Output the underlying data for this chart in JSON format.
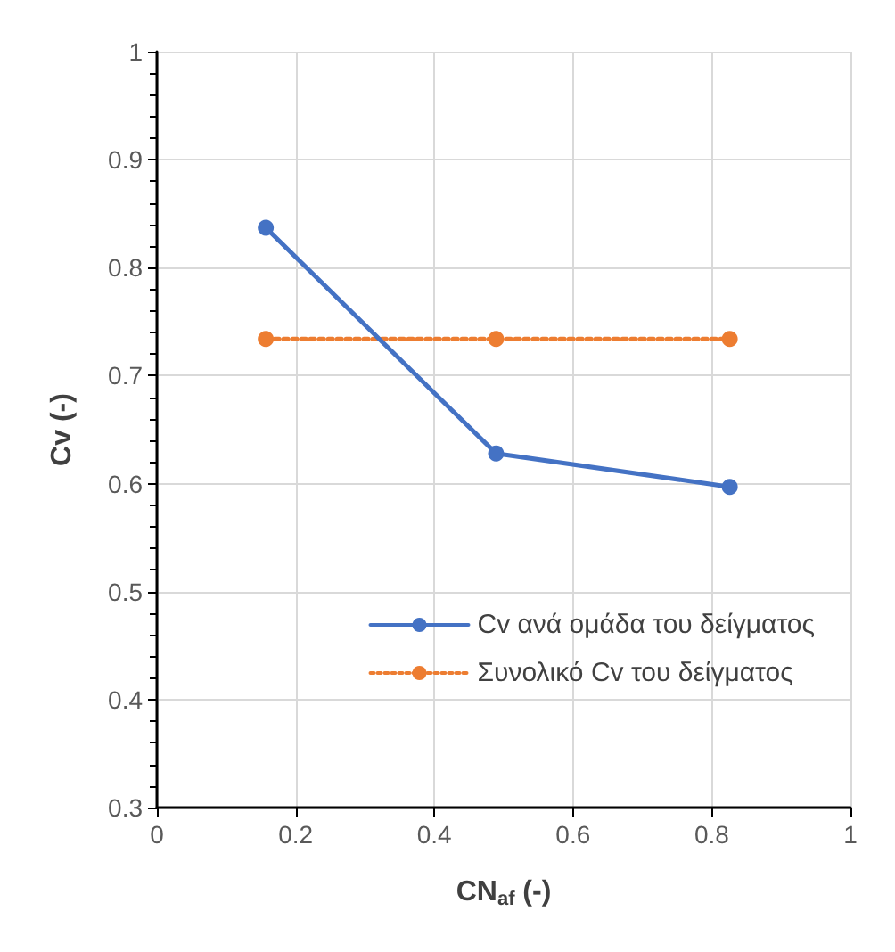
{
  "chart_data": {
    "type": "line",
    "xlabel": "CN$_{af}$ (-)",
    "ylabel": "Cv (-)",
    "x": [
      0.157,
      0.489,
      0.826
    ],
    "series": [
      {
        "name": "Cv ανά ομάδα του δείγματος",
        "color": "#4472c4",
        "values": [
          0.837,
          0.628,
          0.597
        ],
        "line_style": "solid"
      },
      {
        "name": "Συνολικό Cv του δείγματος",
        "color": "#ed7d31",
        "values": [
          0.734,
          0.734,
          0.734
        ],
        "line_style": "dotted"
      }
    ],
    "xlim": [
      0,
      1
    ],
    "xticks": [
      0,
      0.2,
      0.4,
      0.6,
      0.8,
      1
    ],
    "ylim": [
      0.3,
      1
    ],
    "yticks": [
      0.3,
      0.4,
      0.5,
      0.6,
      0.7,
      0.8,
      0.9,
      1
    ],
    "grid": true,
    "legend": "right",
    "marker": "circle"
  }
}
